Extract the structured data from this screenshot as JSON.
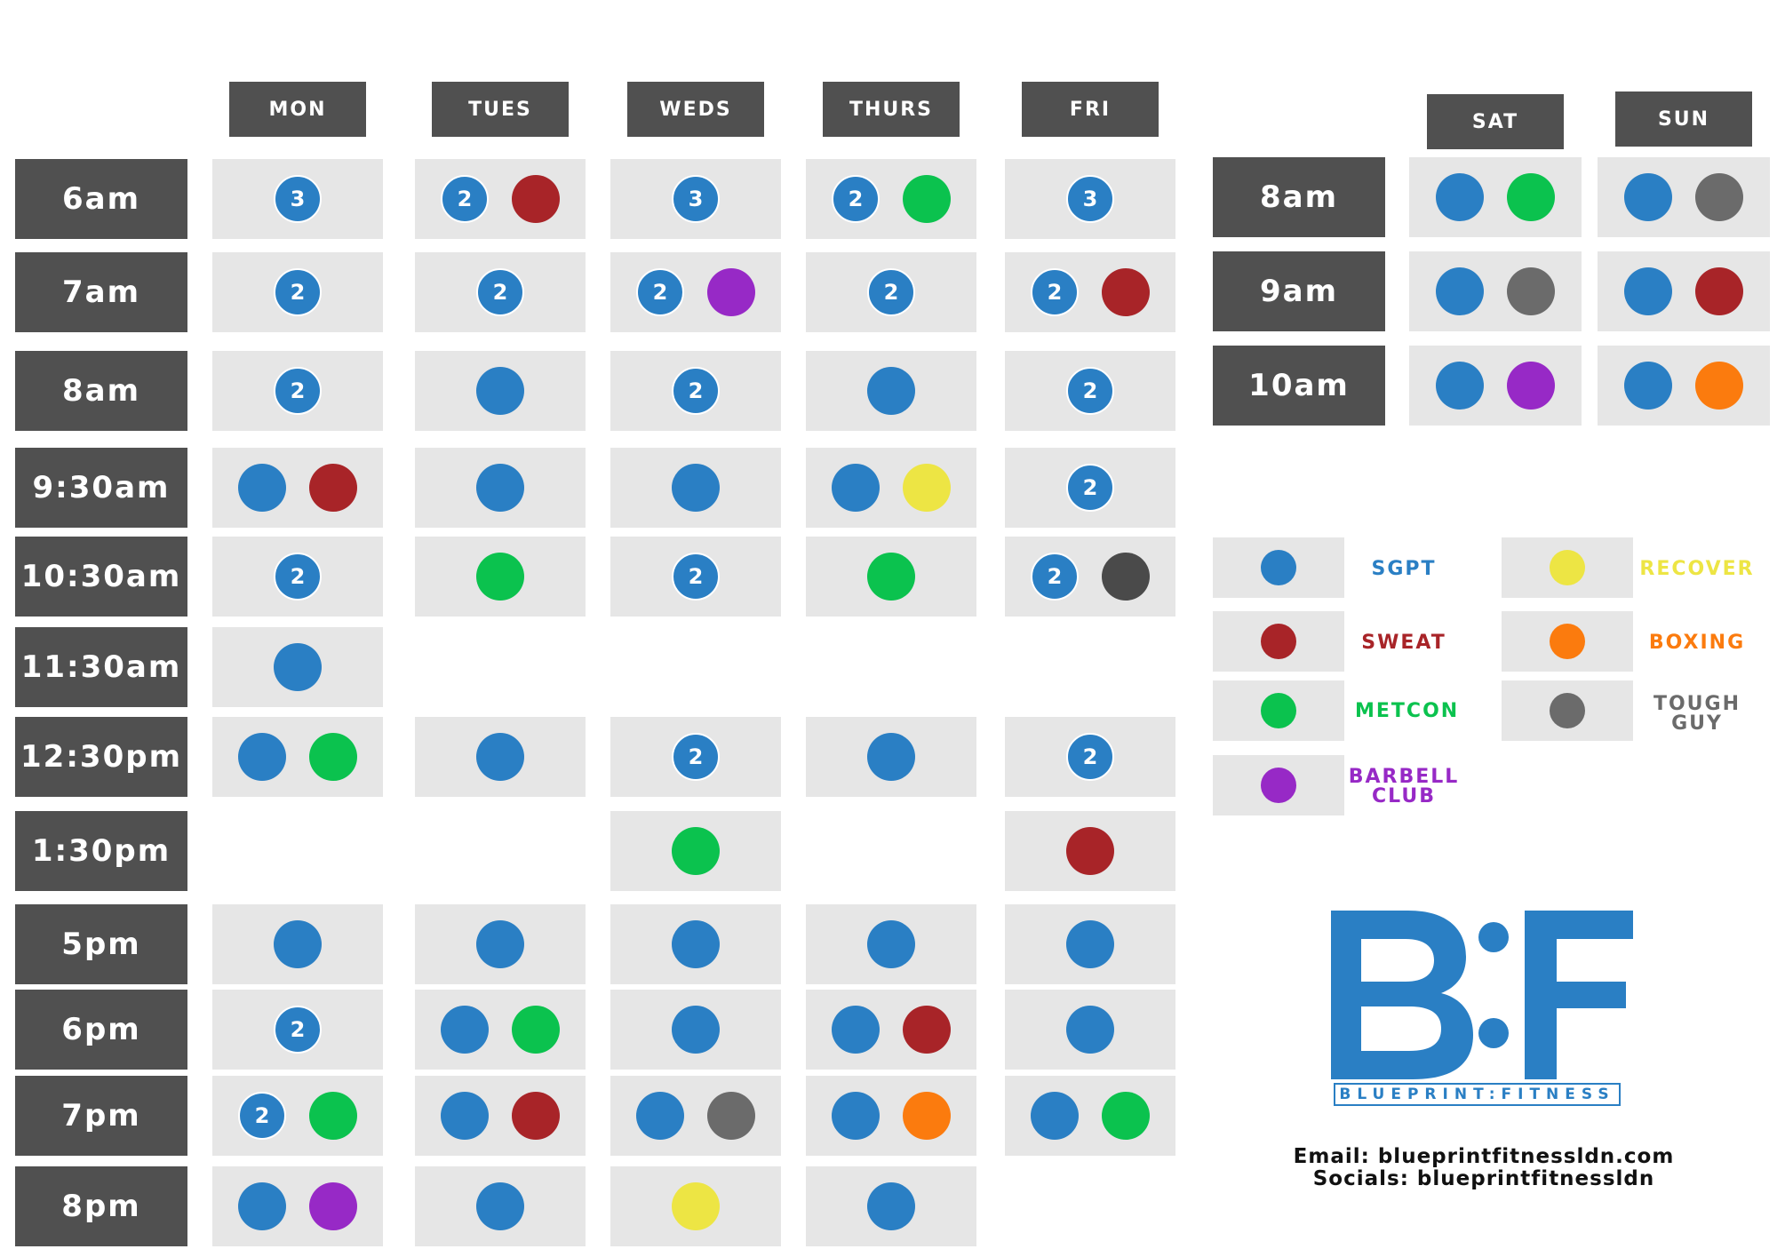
{
  "colors": {
    "sgpt": "#2a7fc4",
    "sweat": "#a82428",
    "metcon": "#0bc24e",
    "barbell": "#9729c6",
    "recover": "#ede544",
    "boxing": "#fb7b0e",
    "tough": "#6b6b6b",
    "tough_dark": "#4a4a4a",
    "header_bg": "#505050",
    "slot_bg": "#e6e6e6"
  },
  "weekday": {
    "days": [
      "MON",
      "TUES",
      "WEDS",
      "THURS",
      "FRI"
    ],
    "times": [
      "6am",
      "7am",
      "8am",
      "9:30am",
      "10:30am",
      "11:30am",
      "12:30pm",
      "1:30pm",
      "5pm",
      "6pm",
      "7pm",
      "8pm"
    ],
    "grid": [
      [
        [
          {
            "c": "sgpt",
            "n": "3"
          }
        ],
        [
          {
            "c": "sgpt",
            "n": "2"
          },
          {
            "c": "sweat"
          }
        ],
        [
          {
            "c": "sgpt",
            "n": "3"
          }
        ],
        [
          {
            "c": "sgpt",
            "n": "2"
          },
          {
            "c": "metcon"
          }
        ],
        [
          {
            "c": "sgpt",
            "n": "3"
          }
        ]
      ],
      [
        [
          {
            "c": "sgpt",
            "n": "2"
          }
        ],
        [
          {
            "c": "sgpt",
            "n": "2"
          }
        ],
        [
          {
            "c": "sgpt",
            "n": "2"
          },
          {
            "c": "barbell"
          }
        ],
        [
          {
            "c": "sgpt",
            "n": "2"
          }
        ],
        [
          {
            "c": "sgpt",
            "n": "2"
          },
          {
            "c": "sweat"
          }
        ]
      ],
      [
        [
          {
            "c": "sgpt",
            "n": "2"
          }
        ],
        [
          {
            "c": "sgpt"
          }
        ],
        [
          {
            "c": "sgpt",
            "n": "2"
          }
        ],
        [
          {
            "c": "sgpt"
          }
        ],
        [
          {
            "c": "sgpt",
            "n": "2"
          }
        ]
      ],
      [
        [
          {
            "c": "sgpt"
          },
          {
            "c": "sweat"
          }
        ],
        [
          {
            "c": "sgpt"
          }
        ],
        [
          {
            "c": "sgpt"
          }
        ],
        [
          {
            "c": "sgpt"
          },
          {
            "c": "recover"
          }
        ],
        [
          {
            "c": "sgpt",
            "n": "2"
          }
        ]
      ],
      [
        [
          {
            "c": "sgpt",
            "n": "2"
          }
        ],
        [
          {
            "c": "metcon"
          }
        ],
        [
          {
            "c": "sgpt",
            "n": "2"
          }
        ],
        [
          {
            "c": "metcon"
          }
        ],
        [
          {
            "c": "sgpt",
            "n": "2"
          },
          {
            "c": "tough_dark"
          }
        ]
      ],
      [
        [
          {
            "c": "sgpt"
          }
        ],
        null,
        null,
        null,
        null
      ],
      [
        [
          {
            "c": "sgpt"
          },
          {
            "c": "metcon"
          }
        ],
        [
          {
            "c": "sgpt"
          }
        ],
        [
          {
            "c": "sgpt",
            "n": "2"
          }
        ],
        [
          {
            "c": "sgpt"
          }
        ],
        [
          {
            "c": "sgpt",
            "n": "2"
          }
        ]
      ],
      [
        null,
        null,
        [
          {
            "c": "metcon"
          }
        ],
        null,
        [
          {
            "c": "sweat"
          }
        ]
      ],
      [
        [
          {
            "c": "sgpt"
          }
        ],
        [
          {
            "c": "sgpt"
          }
        ],
        [
          {
            "c": "sgpt"
          }
        ],
        [
          {
            "c": "sgpt"
          }
        ],
        [
          {
            "c": "sgpt"
          }
        ]
      ],
      [
        [
          {
            "c": "sgpt",
            "n": "2"
          }
        ],
        [
          {
            "c": "sgpt"
          },
          {
            "c": "metcon"
          }
        ],
        [
          {
            "c": "sgpt"
          }
        ],
        [
          {
            "c": "sgpt"
          },
          {
            "c": "sweat"
          }
        ],
        [
          {
            "c": "sgpt"
          }
        ]
      ],
      [
        [
          {
            "c": "sgpt",
            "n": "2"
          },
          {
            "c": "metcon"
          }
        ],
        [
          {
            "c": "sgpt"
          },
          {
            "c": "sweat"
          }
        ],
        [
          {
            "c": "sgpt"
          },
          {
            "c": "tough"
          }
        ],
        [
          {
            "c": "sgpt"
          },
          {
            "c": "boxing"
          }
        ],
        [
          {
            "c": "sgpt"
          },
          {
            "c": "metcon"
          }
        ]
      ],
      [
        [
          {
            "c": "sgpt"
          },
          {
            "c": "barbell"
          }
        ],
        [
          {
            "c": "sgpt"
          }
        ],
        [
          {
            "c": "recover"
          }
        ],
        [
          {
            "c": "sgpt"
          }
        ],
        null
      ]
    ]
  },
  "weekend": {
    "days": [
      "SAT",
      "SUN"
    ],
    "times": [
      "8am",
      "9am",
      "10am"
    ],
    "grid": [
      [
        [
          {
            "c": "sgpt"
          },
          {
            "c": "metcon"
          }
        ],
        [
          {
            "c": "sgpt"
          },
          {
            "c": "tough"
          }
        ]
      ],
      [
        [
          {
            "c": "sgpt"
          },
          {
            "c": "tough"
          }
        ],
        [
          {
            "c": "sgpt"
          },
          {
            "c": "sweat"
          }
        ]
      ],
      [
        [
          {
            "c": "sgpt"
          },
          {
            "c": "barbell"
          }
        ],
        [
          {
            "c": "sgpt"
          },
          {
            "c": "boxing"
          }
        ]
      ]
    ]
  },
  "legend": [
    {
      "key": "sgpt",
      "label": "SGPT"
    },
    {
      "key": "sweat",
      "label": "SWEAT"
    },
    {
      "key": "metcon",
      "label": "METCON"
    },
    {
      "key": "barbell",
      "label": "BARBELL\nCLUB"
    },
    {
      "key": "recover",
      "label": "RECOVER"
    },
    {
      "key": "boxing",
      "label": "BOXING"
    },
    {
      "key": "tough",
      "label": "TOUGH\nGUY"
    }
  ],
  "brand": {
    "logo_text": "B:F",
    "tagline": "BLUEPRINT:FITNESS"
  },
  "contact": {
    "email_line": "Email: blueprintfitnessldn.com",
    "socials_line": "Socials: blueprintfitnessldn"
  }
}
